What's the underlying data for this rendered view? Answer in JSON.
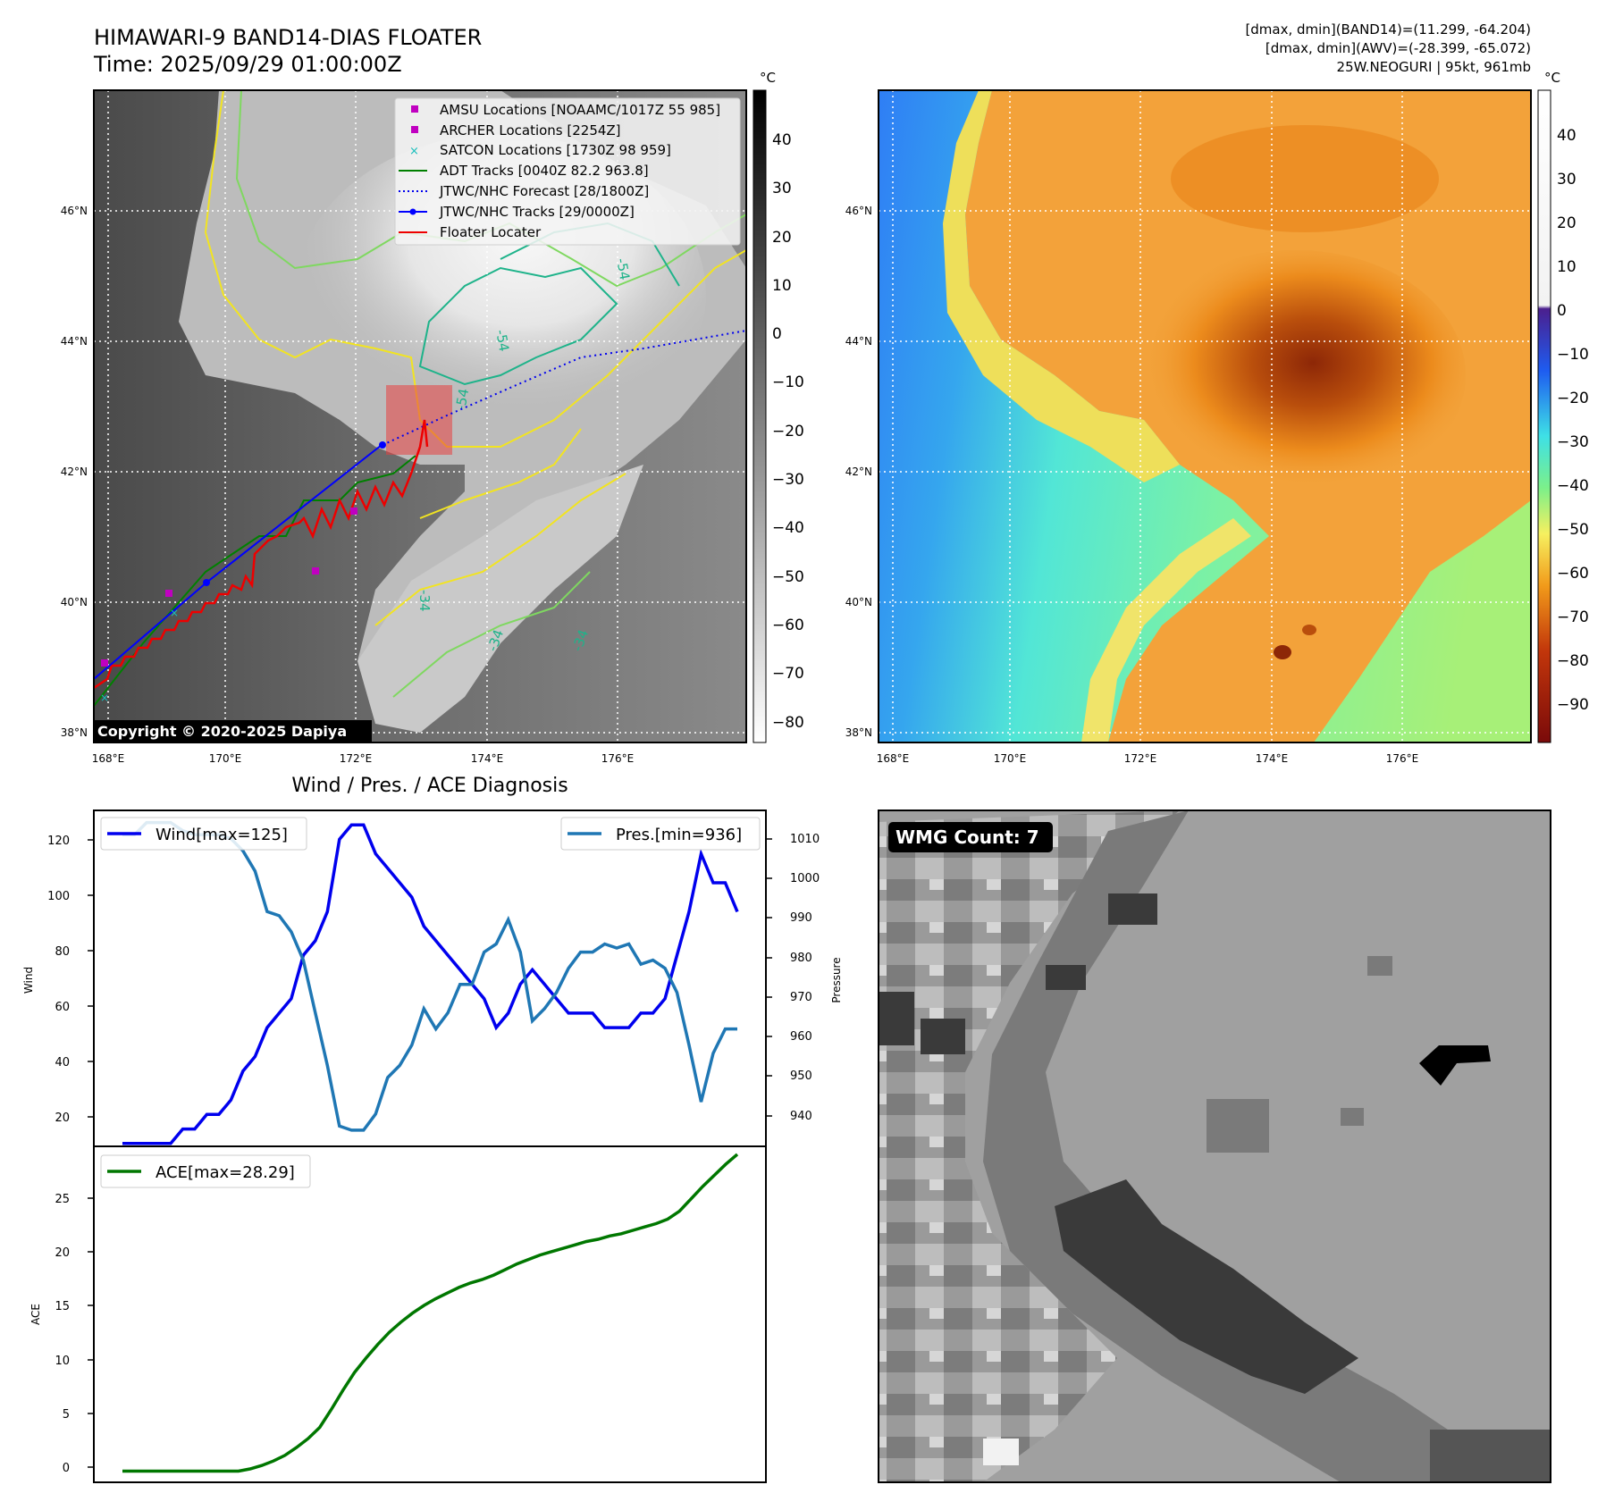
{
  "header": {
    "title": "HIMAWARI-9 BAND14-DIAS FLOATER",
    "time": "Time: 2025/09/29 01:00:00Z",
    "info_line1": "[dmax, dmin](BAND14)=(11.299, -64.204)",
    "info_line2": "[dmax, dmin](AWV)=(-28.399, -65.072)",
    "info_line3": "25W.NEOGURI | 95kt, 961mb"
  },
  "maps": {
    "lat_ticks": [
      "46°N",
      "44°N",
      "42°N",
      "40°N",
      "38°N"
    ],
    "lon_ticks": [
      "168°E",
      "170°E",
      "172°E",
      "174°E",
      "176°E"
    ],
    "copyright": "Copyright © 2020-2025 Dapiya",
    "contour_labels": [
      "-54",
      "-54",
      "-54",
      "-34",
      "-34",
      "-34"
    ]
  },
  "colorbar_gray": {
    "unit": "°C",
    "ticks": [
      "40",
      "30",
      "20",
      "10",
      "0",
      "−10",
      "−20",
      "−30",
      "−40",
      "−50",
      "−60",
      "−70",
      "−80"
    ]
  },
  "colorbar_color": {
    "unit": "°C",
    "ticks": [
      "40",
      "30",
      "20",
      "10",
      "0",
      "−10",
      "−20",
      "−30",
      "−40",
      "−50",
      "−60",
      "−70",
      "−80",
      "−90"
    ],
    "colors": {
      "white": "#ffffff",
      "purple": "#4b1f8e",
      "blue": "#1e5cf0",
      "cyan": "#3ee0e6",
      "green": "#7cf08a",
      "yellow": "#f6f060",
      "orange": "#f19a1a",
      "red": "#c2360b",
      "darkred": "#7a0a0a"
    }
  },
  "legend": {
    "amsu": "AMSU Locations [NOAAMC/1017Z 55 985]",
    "archer": "ARCHER Locations [2254Z]",
    "satcon": "SATCON Locations [1730Z 98 959]",
    "adt": "ADT Tracks [0040Z 82.2 963.8]",
    "forecast": "JTWC/NHC Forecast [28/1800Z]",
    "tracks": "JTWC/NHC Tracks [29/0000Z]",
    "floater": "Floater Locater"
  },
  "diagnosis": {
    "title": "Wind / Pres. / ACE Diagnosis",
    "wind_label": "Wind",
    "pressure_label": "Pressure",
    "ace_label": "ACE",
    "wind_legend": "Wind[max=125]",
    "pres_legend": "Pres.[min=936]",
    "ace_legend": "ACE[max=28.29]",
    "wind_ticks": [
      "120",
      "100",
      "80",
      "60",
      "40",
      "20"
    ],
    "pres_ticks": [
      "1010",
      "1000",
      "990",
      "980",
      "970",
      "960",
      "950",
      "940"
    ],
    "ace_ticks": [
      "25",
      "20",
      "15",
      "10",
      "5",
      "0"
    ]
  },
  "wmg": {
    "label": "WMG Count: 7"
  },
  "colors": {
    "wind": "#0000ee",
    "pressure": "#1f77b4",
    "ace": "#007700",
    "track": "#0000ff",
    "adt": "#008000",
    "floater": "#ee0000",
    "amsu": "#c000c0",
    "satcon": "#17bebb"
  },
  "chart_data": [
    {
      "type": "line",
      "title": "Wind / Pres. / ACE Diagnosis",
      "ylabel": "Wind",
      "ylim": [
        14,
        130
      ],
      "series": [
        {
          "name": "Wind[max=125]",
          "axis": "left",
          "values": [
            15,
            15,
            15,
            15,
            15,
            20,
            20,
            25,
            25,
            30,
            40,
            45,
            55,
            60,
            65,
            80,
            85,
            95,
            120,
            125,
            125,
            115,
            110,
            105,
            100,
            90,
            85,
            80,
            75,
            70,
            65,
            55,
            60,
            70,
            75,
            70,
            65,
            60,
            60,
            60,
            55,
            55,
            55,
            60,
            60,
            65,
            80,
            95,
            115,
            105,
            105,
            95
          ]
        },
        {
          "name": "Pres.[min=936]",
          "axis": "right",
          "ylabel": "Pressure",
          "ylim": [
            932,
            1015
          ],
          "values": [
            1009,
            1009,
            1012,
            1012,
            1012,
            1010,
            1009,
            1009,
            1009,
            1008,
            1005,
            1000,
            990,
            989,
            985,
            978,
            965,
            952,
            937,
            936,
            936,
            940,
            949,
            952,
            957,
            966,
            961,
            965,
            972,
            972,
            980,
            982,
            988,
            980,
            963,
            966,
            970,
            976,
            980,
            980,
            982,
            981,
            982,
            977,
            978,
            976,
            970,
            957,
            943,
            955,
            961,
            961
          ]
        }
      ]
    },
    {
      "type": "line",
      "ylabel": "ACE",
      "ylim": [
        -1,
        29
      ],
      "series": [
        {
          "name": "ACE[max=28.29]",
          "values": [
            0,
            0,
            0,
            0,
            0,
            0,
            0,
            0,
            0,
            0,
            0,
            0.2,
            0.5,
            0.9,
            1.4,
            2.1,
            2.9,
            3.9,
            5.5,
            7.2,
            8.8,
            10.1,
            11.3,
            12.4,
            13.3,
            14.1,
            14.8,
            15.4,
            15.9,
            16.4,
            16.8,
            17.1,
            17.5,
            18.0,
            18.5,
            18.9,
            19.3,
            19.6,
            19.9,
            20.2,
            20.5,
            20.7,
            21.0,
            21.2,
            21.5,
            21.8,
            22.1,
            22.5,
            23.2,
            24.3,
            25.4,
            26.4,
            27.4,
            28.29
          ]
        }
      ]
    }
  ]
}
